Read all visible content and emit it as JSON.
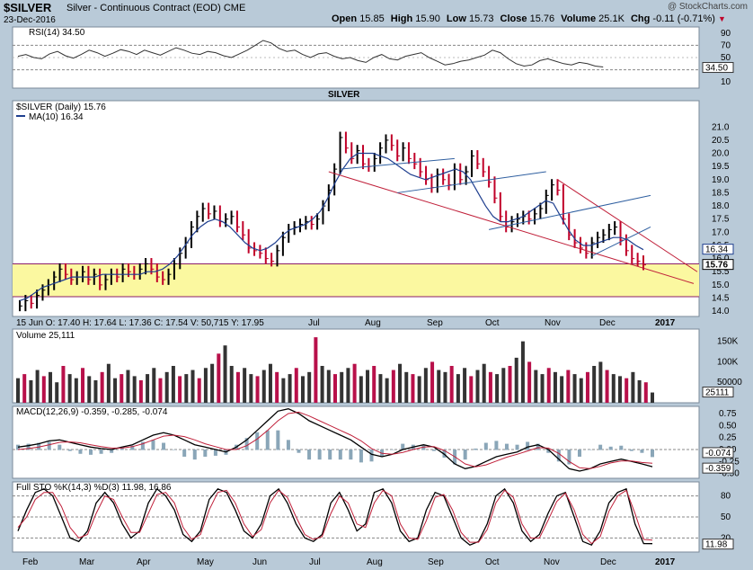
{
  "header": {
    "symbol": "$SILVER",
    "name": "Silver - Continuous Contract (EOD)",
    "exchange": "CME",
    "date": "23-Dec-2016",
    "copyright": "@ StockCharts.com",
    "open_label": "Open",
    "open": "15.85",
    "high_label": "High",
    "high": "15.90",
    "low_label": "Low",
    "low": "15.73",
    "close_label": "Close",
    "close": "15.76",
    "volume_label": "Volume",
    "volume": "25.1K",
    "chg_label": "Chg",
    "chg": "-0.11 (-0.71%)"
  },
  "colors": {
    "background": "#b9cad8",
    "panel": "#ffffff",
    "up_bar": "#000000",
    "down_bar": "#c00028",
    "ma_line": "#1f3f8f",
    "support_zone": "#fbf8a0",
    "trendline_red": "#c0203a",
    "trendline_blue": "#2f5fa0",
    "title": "#13376e"
  },
  "chart_data": [
    {
      "type": "line",
      "panel": "rsi",
      "label": "RSI(14) 34.50",
      "y_ticks": [
        10,
        30,
        50,
        70,
        90
      ],
      "current_value_label": "34.50",
      "ylim": [
        0,
        100
      ],
      "series": [
        {
          "name": "RSI(14)",
          "values": [
            52,
            55,
            50,
            48,
            56,
            60,
            53,
            49,
            55,
            62,
            58,
            52,
            57,
            63,
            60,
            55,
            62,
            58,
            54,
            60,
            66,
            62,
            57,
            55,
            60,
            58,
            53,
            50,
            56,
            62,
            70,
            78,
            74,
            65,
            60,
            62,
            55,
            50,
            56,
            58,
            52,
            48,
            50,
            45,
            42,
            50,
            55,
            48,
            46,
            52,
            55,
            58,
            50,
            44,
            38,
            40,
            44,
            46,
            50,
            54,
            62,
            58,
            48,
            40,
            36,
            38,
            45,
            48,
            44,
            40,
            38,
            42,
            40,
            36,
            34.5
          ]
        }
      ]
    },
    {
      "type": "bar",
      "panel": "price",
      "title": "SILVER",
      "legend": [
        "$SILVER (Daily) 15.76",
        "MA(10) 16.34"
      ],
      "ohlc_caption": "15 Jun O: 17.40  H: 17.64  L: 17.36  C: 17.54  V: 50,715  Y: 17.95",
      "ylim": [
        13.8,
        22.0
      ],
      "y_ticks": [
        14.0,
        14.5,
        15.0,
        15.5,
        16.0,
        16.5,
        17.0,
        17.5,
        18.0,
        18.5,
        19.0,
        19.5,
        20.0,
        20.5,
        21.0
      ],
      "x_tick_labels": [
        "Jul",
        "Aug",
        "Sep",
        "Oct",
        "Nov",
        "Dec",
        "2017"
      ],
      "price_tags": [
        "16.34",
        "15.76"
      ],
      "support_zone": [
        14.55,
        15.8
      ],
      "series": [
        {
          "name": "$SILVER",
          "values": [
            14.2,
            14.4,
            14.3,
            14.6,
            14.8,
            15.0,
            15.3,
            15.6,
            15.4,
            15.2,
            15.3,
            15.5,
            15.2,
            15.4,
            15.0,
            15.2,
            15.4,
            15.3,
            15.6,
            15.5,
            15.4,
            15.6,
            15.8,
            15.6,
            15.3,
            15.2,
            15.4,
            15.8,
            16.2,
            16.6,
            17.2,
            17.6,
            17.9,
            17.7,
            17.8,
            17.4,
            17.5,
            17.6,
            17.2,
            16.9,
            16.4,
            16.3,
            16.2,
            16.0,
            15.9,
            16.3,
            16.8,
            17.1,
            17.2,
            17.3,
            17.4,
            17.3,
            17.5,
            18.0,
            18.6,
            19.4,
            20.6,
            20.2,
            19.8,
            20.1,
            19.6,
            19.5,
            19.8,
            20.2,
            20.5,
            20.3,
            19.9,
            20.2,
            19.8,
            19.6,
            19.3,
            19.0,
            18.7,
            19.2,
            19.0,
            18.8,
            19.4,
            19.0,
            19.3,
            19.9,
            19.6,
            19.3,
            18.9,
            18.3,
            17.6,
            17.2,
            17.4,
            17.5,
            17.6,
            17.5,
            17.7,
            17.9,
            18.4,
            18.8,
            18.6,
            17.5,
            16.9,
            16.6,
            16.4,
            16.2,
            16.6,
            16.8,
            16.9,
            17.1,
            17.2,
            16.7,
            16.3,
            16.0,
            15.9,
            15.76
          ]
        },
        {
          "name": "MA(10)",
          "values": [
            14.4,
            14.5,
            14.7,
            14.9,
            15.0,
            15.1,
            15.2,
            15.3,
            15.3,
            15.3,
            15.3,
            15.4,
            15.4,
            15.4,
            15.4,
            15.4,
            15.4,
            15.5,
            15.5,
            15.6,
            15.8,
            16.1,
            16.5,
            16.9,
            17.2,
            17.4,
            17.5,
            17.4,
            17.2,
            16.9,
            16.6,
            16.4,
            16.3,
            16.4,
            16.6,
            16.9,
            17.1,
            17.2,
            17.3,
            17.5,
            17.8,
            18.3,
            18.9,
            19.4,
            19.8,
            20.0,
            20.0,
            20.0,
            19.9,
            19.8,
            19.6,
            19.4,
            19.2,
            19.1,
            19.0,
            19.1,
            19.2,
            19.3,
            19.4,
            19.3,
            19.0,
            18.5,
            18.0,
            17.6,
            17.4,
            17.4,
            17.5,
            17.6,
            17.8,
            18.0,
            18.2,
            18.1,
            17.6,
            17.1,
            16.7,
            16.5,
            16.5,
            16.6,
            16.7,
            16.8,
            16.8,
            16.7,
            16.5,
            16.34
          ]
        }
      ]
    },
    {
      "type": "bar",
      "panel": "volume",
      "label": "Volume 25,111",
      "y_ticks": [
        "150K",
        "100K",
        "50000"
      ],
      "current_value_label": "25111",
      "ylim": [
        0,
        180000
      ],
      "series": [
        {
          "name": "Volume",
          "values": [
            60000,
            70000,
            55000,
            80000,
            65000,
            75000,
            50000,
            90000,
            70000,
            60000,
            85000,
            65000,
            55000,
            75000,
            95000,
            60000,
            70000,
            80000,
            65000,
            55000,
            70000,
            85000,
            60000,
            75000,
            90000,
            65000,
            70000,
            80000,
            60000,
            85000,
            95000,
            120000,
            140000,
            90000,
            75000,
            85000,
            70000,
            65000,
            80000,
            95000,
            75000,
            60000,
            70000,
            85000,
            65000,
            75000,
            160000,
            90000,
            80000,
            70000,
            75000,
            85000,
            95000,
            65000,
            80000,
            90000,
            70000,
            60000,
            80000,
            95000,
            75000,
            70000,
            65000,
            85000,
            100000,
            80000,
            75000,
            90000,
            70000,
            85000,
            65000,
            80000,
            95000,
            75000,
            70000,
            85000,
            90000,
            110000,
            150000,
            100000,
            80000,
            70000,
            85000,
            75000,
            65000,
            80000,
            70000,
            60000,
            75000,
            90000,
            100000,
            80000,
            70000,
            65000,
            60000,
            75000,
            55000,
            50000,
            25111
          ]
        }
      ]
    },
    {
      "type": "line",
      "panel": "macd",
      "label": "MACD(12,26,9) -0.359, -0.285, -0.074",
      "y_ticks": [
        "0.75",
        "0.50",
        "0.25",
        "0.00",
        "-0.25",
        "-0.50"
      ],
      "current_value_labels": [
        "-0.074",
        "-0.359"
      ],
      "ylim": [
        -0.6,
        0.9
      ],
      "series": [
        {
          "name": "MACD",
          "values": [
            0.05,
            0.08,
            0.12,
            0.18,
            0.2,
            0.15,
            0.1,
            0.05,
            0.02,
            0.0,
            0.05,
            0.1,
            0.2,
            0.3,
            0.35,
            0.3,
            0.2,
            0.1,
            0.05,
            0.0,
            -0.05,
            0.05,
            0.2,
            0.4,
            0.6,
            0.8,
            0.85,
            0.75,
            0.6,
            0.5,
            0.4,
            0.3,
            0.2,
            0.05,
            -0.1,
            -0.15,
            -0.1,
            0.0,
            0.05,
            0.1,
            0.05,
            -0.1,
            -0.3,
            -0.4,
            -0.35,
            -0.25,
            -0.15,
            -0.1,
            -0.05,
            0.05,
            0.1,
            0.0,
            -0.2,
            -0.4,
            -0.45,
            -0.4,
            -0.3,
            -0.25,
            -0.2,
            -0.25,
            -0.3,
            -0.359
          ]
        },
        {
          "name": "Signal",
          "values": [
            0.0,
            0.02,
            0.05,
            0.1,
            0.15,
            0.16,
            0.14,
            0.1,
            0.06,
            0.03,
            0.03,
            0.06,
            0.12,
            0.2,
            0.28,
            0.3,
            0.27,
            0.2,
            0.12,
            0.06,
            0.0,
            0.0,
            0.08,
            0.22,
            0.4,
            0.6,
            0.75,
            0.78,
            0.7,
            0.6,
            0.5,
            0.4,
            0.3,
            0.18,
            0.02,
            -0.08,
            -0.1,
            -0.06,
            0.0,
            0.05,
            0.06,
            -0.02,
            -0.15,
            -0.3,
            -0.36,
            -0.32,
            -0.24,
            -0.16,
            -0.1,
            -0.03,
            0.04,
            0.03,
            -0.08,
            -0.25,
            -0.38,
            -0.4,
            -0.35,
            -0.28,
            -0.24,
            -0.24,
            -0.27,
            -0.285
          ]
        }
      ]
    },
    {
      "type": "line",
      "panel": "stochastic",
      "label": "Full STO %K(14,3) %D(3) 11.98, 16.86",
      "y_ticks": [
        80,
        50,
        20
      ],
      "current_value_label": "11.98",
      "ylim": [
        0,
        100
      ],
      "series": [
        {
          "name": "%K",
          "values": [
            30,
            60,
            85,
            90,
            80,
            50,
            20,
            15,
            30,
            70,
            85,
            70,
            40,
            20,
            30,
            70,
            90,
            80,
            60,
            25,
            15,
            30,
            75,
            90,
            85,
            60,
            30,
            20,
            40,
            80,
            90,
            70,
            40,
            20,
            15,
            25,
            70,
            85,
            60,
            30,
            40,
            85,
            90,
            70,
            30,
            15,
            20,
            60,
            85,
            80,
            50,
            20,
            10,
            15,
            40,
            80,
            90,
            70,
            30,
            15,
            25,
            55,
            80,
            85,
            50,
            15,
            10,
            30,
            70,
            85,
            90,
            40,
            12,
            11.98
          ]
        },
        {
          "name": "%D",
          "values": [
            35,
            50,
            75,
            85,
            85,
            65,
            35,
            20,
            25,
            55,
            80,
            75,
            50,
            28,
            28,
            55,
            82,
            85,
            70,
            35,
            18,
            25,
            60,
            85,
            88,
            70,
            40,
            22,
            32,
            70,
            88,
            78,
            50,
            25,
            18,
            22,
            55,
            80,
            70,
            40,
            35,
            70,
            88,
            80,
            40,
            20,
            18,
            45,
            78,
            82,
            60,
            28,
            14,
            14,
            32,
            70,
            88,
            78,
            40,
            20,
            20,
            45,
            72,
            84,
            60,
            25,
            12,
            22,
            58,
            80,
            88,
            55,
            18,
            16.86
          ]
        }
      ]
    }
  ],
  "bottom_axis": {
    "labels": [
      "Feb",
      "Mar",
      "Apr",
      "May",
      "Jun",
      "Jul",
      "Aug",
      "Sep",
      "Oct",
      "Nov",
      "Dec",
      "2017"
    ]
  }
}
